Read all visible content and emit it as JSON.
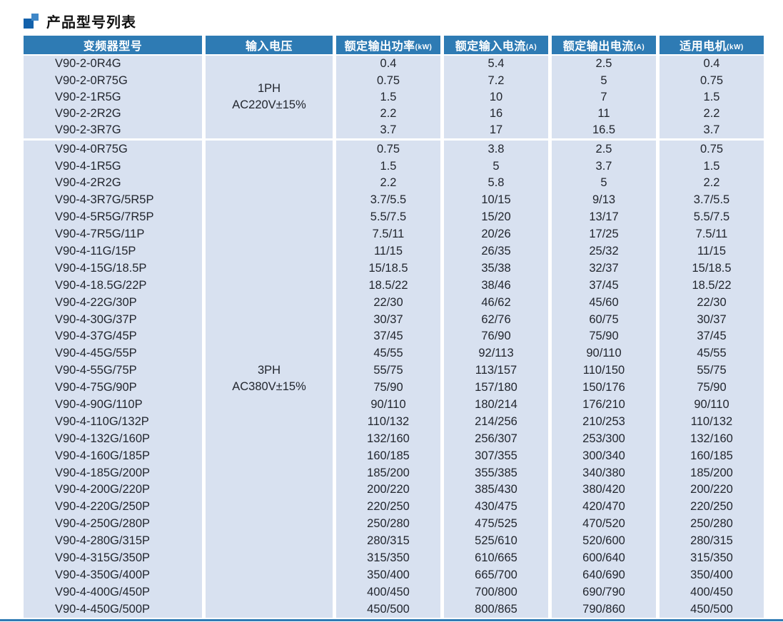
{
  "page_title": "产品型号列表",
  "colors": {
    "header_bg": "#2e7bb4",
    "cell_bg": "#d8e1f0",
    "icon_dark": "#1261ab",
    "icon_light": "#3e87c8",
    "footer_line": "#2e7bb4"
  },
  "table": {
    "headers": [
      {
        "label": "变频器型号",
        "unit": ""
      },
      {
        "label": "输入电压",
        "unit": ""
      },
      {
        "label": "额定输出功率",
        "unit": "(kW)"
      },
      {
        "label": "额定输入电流",
        "unit": "(A)"
      },
      {
        "label": "额定输出电流",
        "unit": "(A)"
      },
      {
        "label": "适用电机",
        "unit": "(kW)"
      }
    ],
    "sections": [
      {
        "input_voltage": {
          "line1": "1PH",
          "line2": "AC220V±15%"
        },
        "rows": [
          {
            "model": "V90-2-0R4G",
            "output_power": "0.4",
            "input_current": "5.4",
            "output_current": "2.5",
            "motor": "0.4"
          },
          {
            "model": "V90-2-0R75G",
            "output_power": "0.75",
            "input_current": "7.2",
            "output_current": "5",
            "motor": "0.75"
          },
          {
            "model": "V90-2-1R5G",
            "output_power": "1.5",
            "input_current": "10",
            "output_current": "7",
            "motor": "1.5"
          },
          {
            "model": "V90-2-2R2G",
            "output_power": "2.2",
            "input_current": "16",
            "output_current": "11",
            "motor": "2.2"
          },
          {
            "model": "V90-2-3R7G",
            "output_power": "3.7",
            "input_current": "17",
            "output_current": "16.5",
            "motor": "3.7"
          }
        ]
      },
      {
        "input_voltage": {
          "line1": "3PH",
          "line2": "AC380V±15%"
        },
        "rows": [
          {
            "model": "V90-4-0R75G",
            "output_power": "0.75",
            "input_current": "3.8",
            "output_current": "2.5",
            "motor": "0.75"
          },
          {
            "model": "V90-4-1R5G",
            "output_power": "1.5",
            "input_current": "5",
            "output_current": "3.7",
            "motor": "1.5"
          },
          {
            "model": "V90-4-2R2G",
            "output_power": "2.2",
            "input_current": "5.8",
            "output_current": "5",
            "motor": "2.2"
          },
          {
            "model": "V90-4-3R7G/5R5P",
            "output_power": "3.7/5.5",
            "input_current": "10/15",
            "output_current": "9/13",
            "motor": "3.7/5.5"
          },
          {
            "model": "V90-4-5R5G/7R5P",
            "output_power": "5.5/7.5",
            "input_current": "15/20",
            "output_current": "13/17",
            "motor": "5.5/7.5"
          },
          {
            "model": "V90-4-7R5G/11P",
            "output_power": "7.5/11",
            "input_current": "20/26",
            "output_current": "17/25",
            "motor": "7.5/11"
          },
          {
            "model": "V90-4-11G/15P",
            "output_power": "11/15",
            "input_current": "26/35",
            "output_current": "25/32",
            "motor": "11/15"
          },
          {
            "model": "V90-4-15G/18.5P",
            "output_power": "15/18.5",
            "input_current": "35/38",
            "output_current": "32/37",
            "motor": "15/18.5"
          },
          {
            "model": "V90-4-18.5G/22P",
            "output_power": "18.5/22",
            "input_current": "38/46",
            "output_current": "37/45",
            "motor": "18.5/22"
          },
          {
            "model": "V90-4-22G/30P",
            "output_power": "22/30",
            "input_current": "46/62",
            "output_current": "45/60",
            "motor": "22/30"
          },
          {
            "model": "V90-4-30G/37P",
            "output_power": "30/37",
            "input_current": "62/76",
            "output_current": "60/75",
            "motor": "30/37"
          },
          {
            "model": "V90-4-37G/45P",
            "output_power": "37/45",
            "input_current": "76/90",
            "output_current": "75/90",
            "motor": "37/45"
          },
          {
            "model": "V90-4-45G/55P",
            "output_power": "45/55",
            "input_current": "92/113",
            "output_current": "90/110",
            "motor": "45/55"
          },
          {
            "model": "V90-4-55G/75P",
            "output_power": "55/75",
            "input_current": "113/157",
            "output_current": "110/150",
            "motor": "55/75"
          },
          {
            "model": "V90-4-75G/90P",
            "output_power": "75/90",
            "input_current": "157/180",
            "output_current": "150/176",
            "motor": "75/90"
          },
          {
            "model": "V90-4-90G/110P",
            "output_power": "90/110",
            "input_current": "180/214",
            "output_current": "176/210",
            "motor": "90/110"
          },
          {
            "model": "V90-4-110G/132P",
            "output_power": "110/132",
            "input_current": "214/256",
            "output_current": "210/253",
            "motor": "110/132"
          },
          {
            "model": "V90-4-132G/160P",
            "output_power": "132/160",
            "input_current": "256/307",
            "output_current": "253/300",
            "motor": "132/160"
          },
          {
            "model": "V90-4-160G/185P",
            "output_power": "160/185",
            "input_current": "307/355",
            "output_current": "300/340",
            "motor": "160/185"
          },
          {
            "model": "V90-4-185G/200P",
            "output_power": "185/200",
            "input_current": "355/385",
            "output_current": "340/380",
            "motor": "185/200"
          },
          {
            "model": "V90-4-200G/220P",
            "output_power": "200/220",
            "input_current": "385/430",
            "output_current": "380/420",
            "motor": "200/220"
          },
          {
            "model": "V90-4-220G/250P",
            "output_power": "220/250",
            "input_current": "430/475",
            "output_current": "420/470",
            "motor": "220/250"
          },
          {
            "model": "V90-4-250G/280P",
            "output_power": "250/280",
            "input_current": "475/525",
            "output_current": "470/520",
            "motor": "250/280"
          },
          {
            "model": "V90-4-280G/315P",
            "output_power": "280/315",
            "input_current": "525/610",
            "output_current": "520/600",
            "motor": "280/315"
          },
          {
            "model": "V90-4-315G/350P",
            "output_power": "315/350",
            "input_current": "610/665",
            "output_current": "600/640",
            "motor": "315/350"
          },
          {
            "model": "V90-4-350G/400P",
            "output_power": "350/400",
            "input_current": "665/700",
            "output_current": "640/690",
            "motor": "350/400"
          },
          {
            "model": "V90-4-400G/450P",
            "output_power": "400/450",
            "input_current": "700/800",
            "output_current": "690/790",
            "motor": "400/450"
          },
          {
            "model": "V90-4-450G/500P",
            "output_power": "450/500",
            "input_current": "800/865",
            "output_current": "790/860",
            "motor": "450/500"
          }
        ]
      }
    ]
  }
}
